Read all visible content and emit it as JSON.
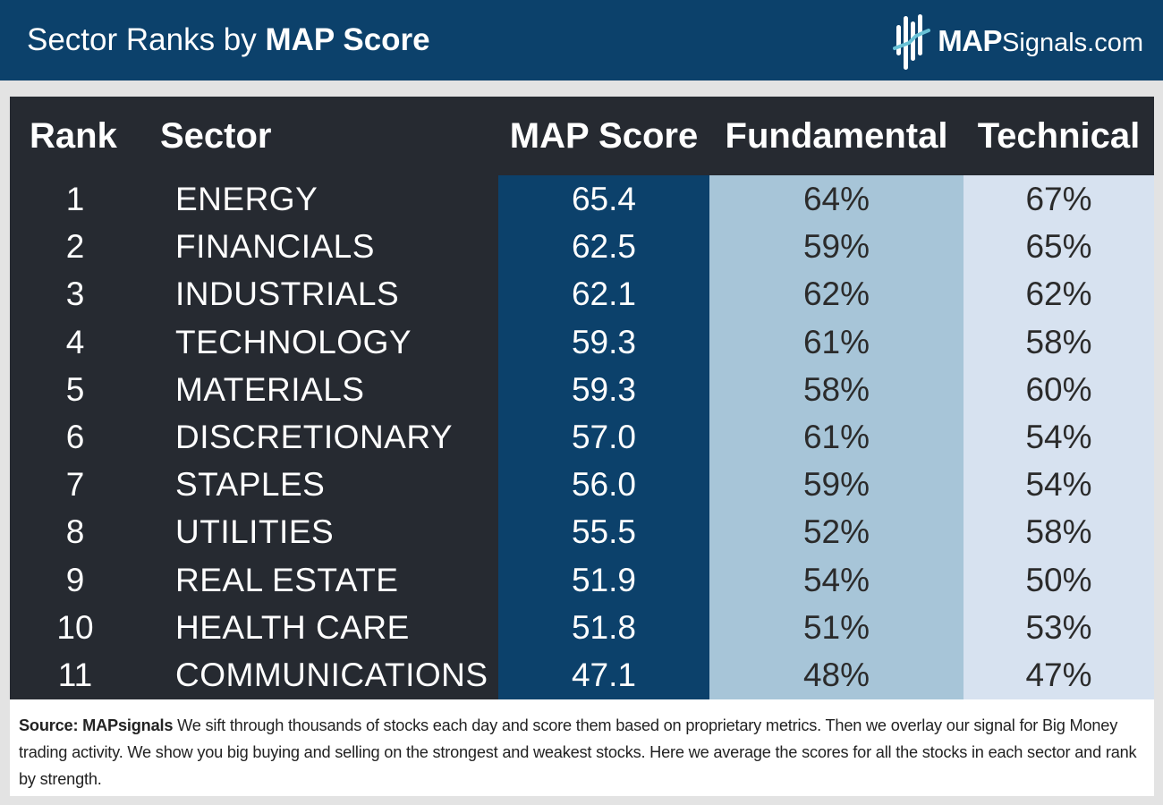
{
  "header": {
    "title_prefix": "Sector Ranks by ",
    "title_bold": "MAP Score",
    "logo_bold": "MAP",
    "logo_rest": "Signals.com"
  },
  "colors": {
    "header_bg": "#0c416b",
    "panel_bg": "#262a31",
    "map_col_bg": "#0c416b",
    "fundamental_col_bg": "#a7c5d8",
    "technical_col_bg": "#d7e2f0"
  },
  "chart_data": {
    "type": "table",
    "title": "Sector Ranks by MAP Score",
    "columns": [
      "Rank",
      "Sector",
      "MAP Score",
      "Fundamental",
      "Technical"
    ],
    "rows": [
      [
        "1",
        "ENERGY",
        "65.4",
        "64%",
        "67%"
      ],
      [
        "2",
        "FINANCIALS",
        "62.5",
        "59%",
        "65%"
      ],
      [
        "3",
        "INDUSTRIALS",
        "62.1",
        "62%",
        "62%"
      ],
      [
        "4",
        "TECHNOLOGY",
        "59.3",
        "61%",
        "58%"
      ],
      [
        "5",
        "MATERIALS",
        "59.3",
        "58%",
        "60%"
      ],
      [
        "6",
        "DISCRETIONARY",
        "57.0",
        "61%",
        "54%"
      ],
      [
        "7",
        "STAPLES",
        "56.0",
        "59%",
        "54%"
      ],
      [
        "8",
        "UTILITIES",
        "55.5",
        "52%",
        "58%"
      ],
      [
        "9",
        "REAL ESTATE",
        "51.9",
        "54%",
        "50%"
      ],
      [
        "10",
        "HEALTH CARE",
        "51.8",
        "51%",
        "53%"
      ],
      [
        "11",
        "COMMUNICATIONS",
        "47.1",
        "48%",
        "47%"
      ]
    ]
  },
  "footer": {
    "source_label": "Source:  MAPsignals",
    "text": "  We sift through thousands of stocks each day and score them based on proprietary metrics. Then we overlay our signal for Big Money trading activity. We show you big buying and selling on the strongest and weakest stocks. Here we average the scores for all the stocks in each sector and rank by strength."
  }
}
